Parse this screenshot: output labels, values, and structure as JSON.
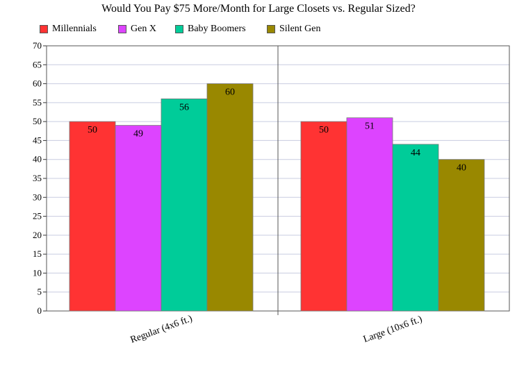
{
  "chart_data": {
    "type": "bar",
    "title": "Would You Pay $75 More/Month for Large Closets vs. Regular Sized?",
    "categories": [
      "Regular (4x6 ft.)",
      "Large (10x6 ft.)"
    ],
    "series": [
      {
        "name": "Millennials",
        "values": [
          50,
          50
        ],
        "color": "#ff3333"
      },
      {
        "name": "Gen X",
        "values": [
          49,
          51
        ],
        "color": "#dd44ff"
      },
      {
        "name": "Baby Boomers",
        "values": [
          56,
          44
        ],
        "color": "#00cc99"
      },
      {
        "name": "Silent Gen",
        "values": [
          60,
          40
        ],
        "color": "#998800"
      }
    ],
    "ylim": [
      0,
      70
    ],
    "yticks": [
      0,
      5,
      10,
      15,
      20,
      25,
      30,
      35,
      40,
      45,
      50,
      55,
      60,
      65,
      70
    ],
    "grid": true,
    "legend_position": "top"
  }
}
